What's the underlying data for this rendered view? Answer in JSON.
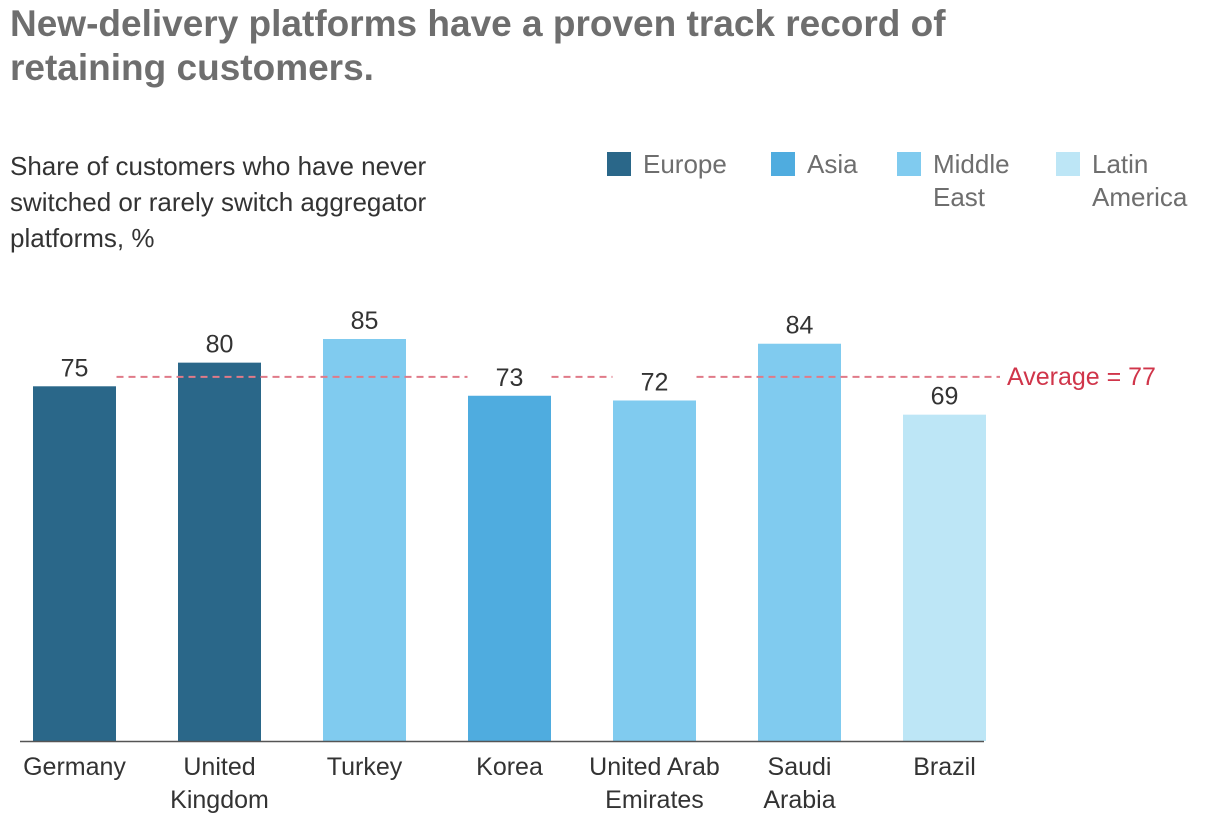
{
  "header": {
    "title": "New-delivery platforms have a proven track record of retaining customers.",
    "subtitle": "Share of customers who have never switched or rarely switch aggregator platforms, %"
  },
  "legend": [
    {
      "label": "Europe",
      "color": "#2a6789"
    },
    {
      "label": "Asia",
      "color": "#4facdf"
    },
    {
      "label": "Middle East",
      "color": "#80cbef"
    },
    {
      "label": "Latin America",
      "color": "#bde6f6"
    }
  ],
  "chart_data": {
    "type": "bar",
    "categories": [
      "Germany",
      "United Kingdom",
      "Turkey",
      "Korea",
      "United Arab Emirates",
      "Saudi Arabia",
      "Brazil"
    ],
    "category_lines": [
      [
        "Germany"
      ],
      [
        "United",
        "Kingdom"
      ],
      [
        "Turkey"
      ],
      [
        "Korea"
      ],
      [
        "United Arab",
        "Emirates"
      ],
      [
        "Saudi",
        "Arabia"
      ],
      [
        "Brazil"
      ]
    ],
    "values": [
      75,
      80,
      85,
      73,
      72,
      84,
      69
    ],
    "regions": [
      "Europe",
      "Europe",
      "Middle East",
      "Asia",
      "Middle East",
      "Middle East",
      "Latin America"
    ],
    "data_labels": [
      "75",
      "80",
      "85",
      "73",
      "72",
      "84",
      "69"
    ],
    "average": {
      "value": 77,
      "label": "Average = 77",
      "color": "#d0354a"
    },
    "ylim": [
      0,
      85
    ],
    "grid": false,
    "legend_position": "top-right"
  }
}
